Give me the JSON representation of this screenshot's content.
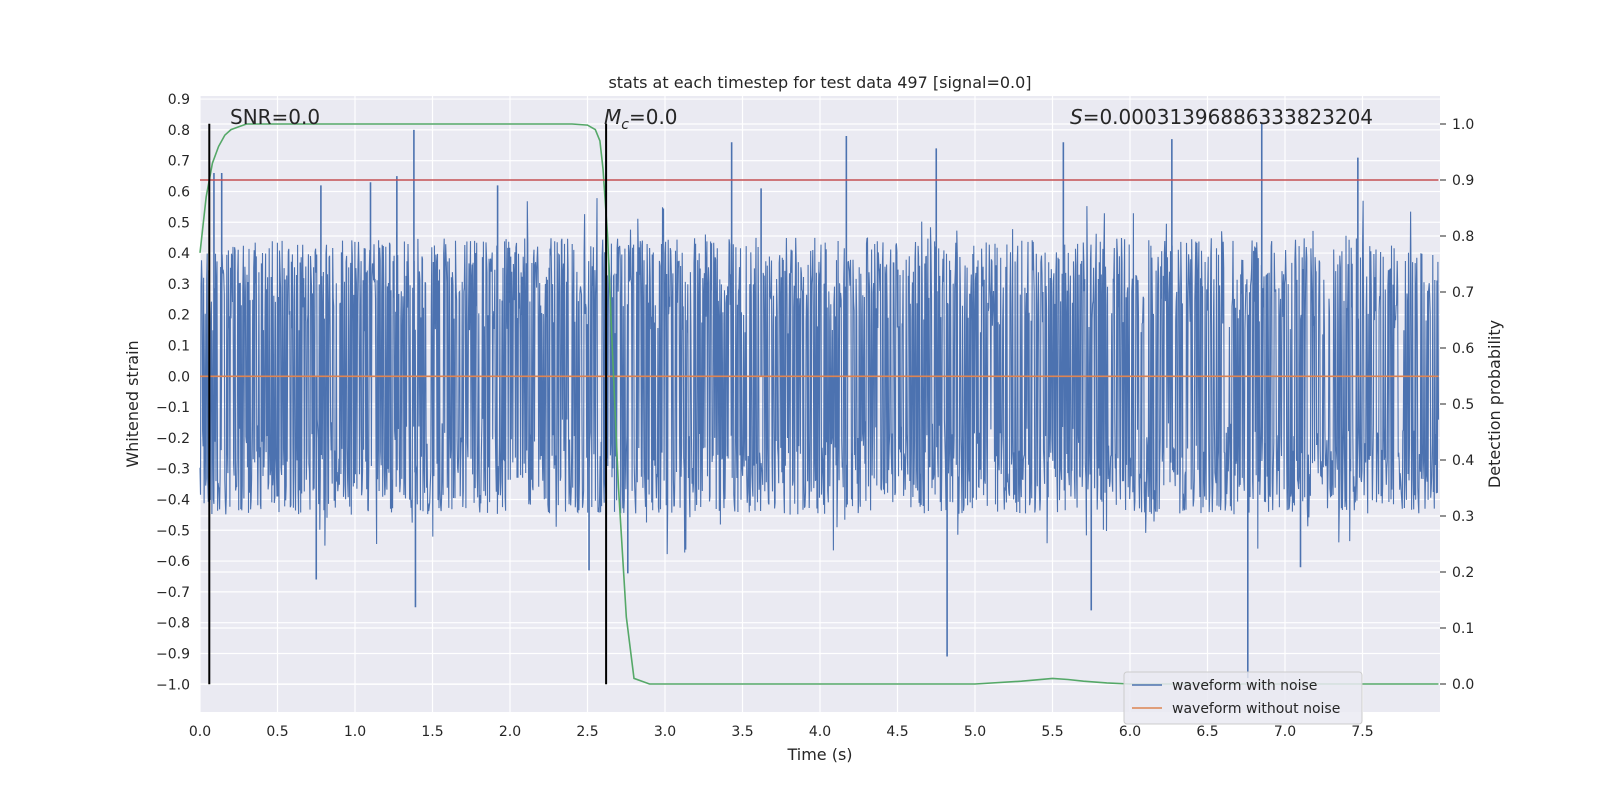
{
  "chart_data": {
    "type": "line",
    "title": "stats at each timestep for test data 497 [signal=0.0]",
    "xlabel": "Time (s)",
    "ylabel": "Whitened strain",
    "y2label": "Detection probability",
    "xlim": [
      0.0,
      8.0
    ],
    "ylim": [
      -1.09,
      0.91
    ],
    "y2lim": [
      -0.05,
      1.05
    ],
    "xticks": [
      0.0,
      0.5,
      1.0,
      1.5,
      2.0,
      2.5,
      3.0,
      3.5,
      4.0,
      4.5,
      5.0,
      5.5,
      6.0,
      6.5,
      7.0,
      7.5
    ],
    "xtick_labels": [
      "0.0",
      "0.5",
      "1.0",
      "1.5",
      "2.0",
      "2.5",
      "3.0",
      "3.5",
      "4.0",
      "4.5",
      "5.0",
      "5.5",
      "6.0",
      "6.5",
      "7.0",
      "7.5"
    ],
    "yticks": [
      0.9,
      0.8,
      0.7,
      0.6,
      0.5,
      0.4,
      0.3,
      0.2,
      0.1,
      0.0,
      -0.1,
      -0.2,
      -0.3,
      -0.4,
      -0.5,
      -0.6,
      -0.7,
      -0.8,
      -0.9,
      -1.0
    ],
    "ytick_labels": [
      "0.9",
      "0.8",
      "0.7",
      "0.6",
      "0.5",
      "0.4",
      "0.3",
      "0.2",
      "0.1",
      "0.0",
      "−0.1",
      "−0.2",
      "−0.3",
      "−0.4",
      "−0.5",
      "−0.6",
      "−0.7",
      "−0.8",
      "−0.9",
      "−1.0"
    ],
    "y2ticks": [
      1.0,
      0.9,
      0.8,
      0.7,
      0.6,
      0.5,
      0.4,
      0.3,
      0.2,
      0.1,
      0.0
    ],
    "y2tick_labels": [
      "1.0",
      "0.9",
      "0.8",
      "0.7",
      "0.6",
      "0.5",
      "0.4",
      "0.3",
      "0.2",
      "0.1",
      "0.0"
    ],
    "grid": true,
    "legend_position": "bottom-right",
    "annotations": {
      "snr": "SNR=0.0",
      "mc_symbol": "M",
      "mc_sub": "c",
      "mc_value": "=0.0",
      "s_symbol": "S",
      "s_value": "=0.00031396886333823204"
    },
    "vlines": [
      0.06,
      2.62
    ],
    "threshold": 0.9,
    "noise_envelope": {
      "times": [
        0.0,
        0.5,
        1.0,
        1.5,
        2.0,
        2.5,
        3.0,
        3.5,
        4.0,
        4.5,
        5.0,
        5.5,
        6.0,
        6.5,
        7.0,
        7.5,
        7.99
      ],
      "upper_typical": [
        0.4,
        0.45,
        0.45,
        0.45,
        0.45,
        0.45,
        0.45,
        0.45,
        0.45,
        0.45,
        0.45,
        0.45,
        0.45,
        0.45,
        0.45,
        0.45,
        0.4
      ],
      "lower_typical": [
        -0.45,
        -0.45,
        -0.45,
        -0.45,
        -0.45,
        -0.45,
        -0.45,
        -0.45,
        -0.45,
        -0.45,
        -0.45,
        -0.45,
        -0.45,
        -0.45,
        -0.45,
        -0.45,
        -0.45
      ],
      "peaks": [
        {
          "t": 0.09,
          "v": 0.66
        },
        {
          "t": 0.14,
          "v": 0.66
        },
        {
          "t": 0.78,
          "v": 0.62
        },
        {
          "t": 1.1,
          "v": 0.63
        },
        {
          "t": 1.38,
          "v": 0.8
        },
        {
          "t": 1.27,
          "v": 0.65
        },
        {
          "t": 1.92,
          "v": 0.62
        },
        {
          "t": 2.62,
          "v": 0.72
        },
        {
          "t": 3.43,
          "v": 0.76
        },
        {
          "t": 3.62,
          "v": 0.61
        },
        {
          "t": 4.17,
          "v": 0.78
        },
        {
          "t": 4.75,
          "v": 0.74
        },
        {
          "t": 5.57,
          "v": 0.76
        },
        {
          "t": 6.27,
          "v": 0.77
        },
        {
          "t": 6.85,
          "v": 0.82
        },
        {
          "t": 7.47,
          "v": 0.71
        },
        {
          "t": 1.39,
          "v": -0.75
        },
        {
          "t": 4.82,
          "v": -0.91
        },
        {
          "t": 5.75,
          "v": -0.76
        },
        {
          "t": 6.76,
          "v": -0.98
        },
        {
          "t": 0.75,
          "v": -0.66
        },
        {
          "t": 2.51,
          "v": -0.63
        },
        {
          "t": 2.76,
          "v": -0.64
        },
        {
          "t": 7.1,
          "v": -0.62
        }
      ]
    },
    "series": [
      {
        "name": "waveform with noise",
        "color": "#4c72b0",
        "kind": "noise"
      },
      {
        "name": "waveform without noise",
        "color": "#dd8452",
        "x": [
          0.0,
          7.99
        ],
        "y": [
          0.0,
          0.0
        ]
      },
      {
        "color": "#55a868",
        "axis": "right",
        "x": [
          0.0,
          0.04,
          0.08,
          0.12,
          0.16,
          0.2,
          0.25,
          0.3,
          0.4,
          0.6,
          1.0,
          2.0,
          2.4,
          2.5,
          2.55,
          2.58,
          2.6,
          2.63,
          2.66,
          2.7,
          2.75,
          2.8,
          2.9,
          3.5,
          4.5,
          5.0,
          5.3,
          5.5,
          5.6,
          5.7,
          5.85,
          6.0,
          6.5,
          7.0,
          7.5,
          7.99
        ],
        "y": [
          0.77,
          0.87,
          0.93,
          0.96,
          0.98,
          0.99,
          0.995,
          1.0,
          1.0,
          1.0,
          1.0,
          1.0,
          1.0,
          0.998,
          0.99,
          0.97,
          0.92,
          0.8,
          0.6,
          0.35,
          0.12,
          0.01,
          0.0,
          0.0,
          0.0,
          0.0,
          0.005,
          0.01,
          0.008,
          0.005,
          0.002,
          0.0,
          0.0,
          0.0,
          0.0,
          0.0
        ]
      },
      {
        "color": "#c44e52",
        "axis": "right",
        "x": [
          0.0,
          7.99
        ],
        "y": [
          0.9,
          0.9
        ]
      }
    ]
  }
}
